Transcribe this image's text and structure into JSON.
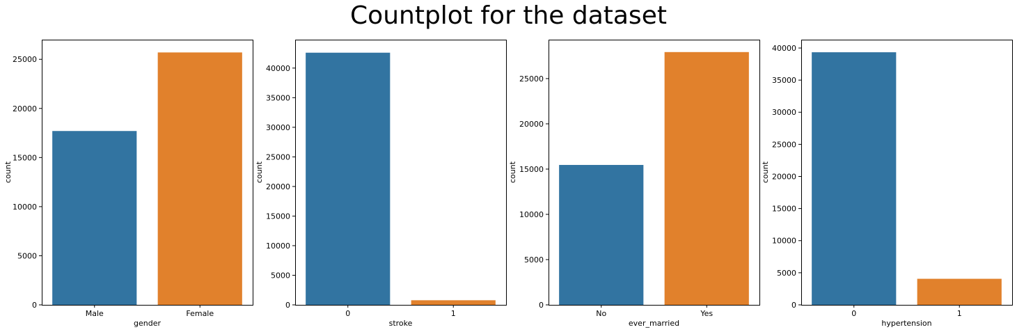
{
  "figure_title": "Countplot for the dataset",
  "colors": {
    "blue": "#3274a1",
    "orange": "#e1812c",
    "frame": "#000000"
  },
  "chart_data": [
    {
      "type": "bar",
      "categories": [
        "Male",
        "Female"
      ],
      "values": [
        17700,
        25700
      ],
      "xlabel": "gender",
      "ylabel": "count",
      "ylim": [
        0,
        27000
      ],
      "yticks": [
        0,
        5000,
        10000,
        15000,
        20000,
        25000
      ],
      "grid": false
    },
    {
      "type": "bar",
      "categories": [
        "0",
        "1"
      ],
      "values": [
        42600,
        780
      ],
      "xlabel": "stroke",
      "ylabel": "count",
      "ylim": [
        0,
        44800
      ],
      "yticks": [
        0,
        5000,
        10000,
        15000,
        20000,
        25000,
        30000,
        35000,
        40000
      ],
      "grid": false
    },
    {
      "type": "bar",
      "categories": [
        "No",
        "Yes"
      ],
      "values": [
        15460,
        27930
      ],
      "xlabel": "ever_married",
      "ylabel": "count",
      "ylim": [
        0,
        29300
      ],
      "yticks": [
        0,
        5000,
        10000,
        15000,
        20000,
        25000
      ],
      "grid": false
    },
    {
      "type": "bar",
      "categories": [
        "0",
        "1"
      ],
      "values": [
        39340,
        4060
      ],
      "xlabel": "hypertension",
      "ylabel": "count",
      "ylim": [
        0,
        41300
      ],
      "yticks": [
        0,
        5000,
        10000,
        15000,
        20000,
        25000,
        30000,
        35000,
        40000
      ],
      "grid": false
    }
  ]
}
